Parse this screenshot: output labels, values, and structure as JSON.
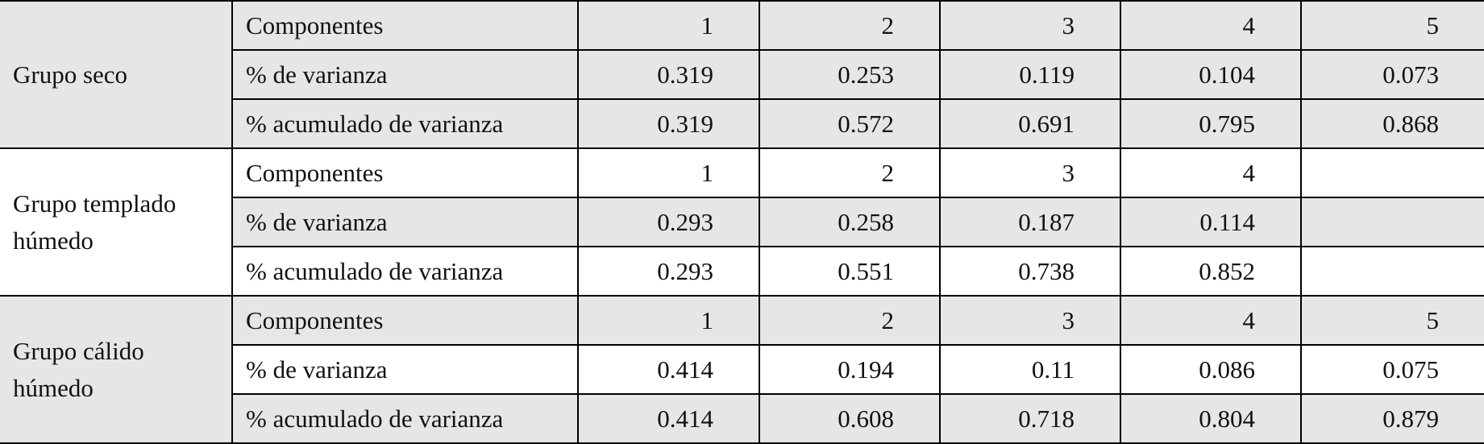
{
  "groups": [
    {
      "name": "Grupo seco",
      "rows": [
        {
          "label": "Componentes",
          "values": [
            1,
            2,
            3,
            4,
            5
          ]
        },
        {
          "label": "% de varianza",
          "values": [
            0.319,
            0.253,
            0.119,
            0.104,
            0.073
          ]
        },
        {
          "label": "% acumulado de varianza",
          "values": [
            0.319,
            0.572,
            0.691,
            0.795,
            0.868
          ]
        }
      ]
    },
    {
      "name": "Grupo templado húmedo",
      "rows": [
        {
          "label": "Componentes",
          "values": [
            1,
            2,
            3,
            4
          ]
        },
        {
          "label": "% de varianza",
          "values": [
            0.293,
            0.258,
            0.187,
            0.114
          ]
        },
        {
          "label": "% acumulado de varianza",
          "values": [
            0.293,
            0.551,
            0.738,
            0.852
          ]
        }
      ]
    },
    {
      "name": "Grupo cálido húmedo",
      "rows": [
        {
          "label": "Componentes",
          "values": [
            1,
            2,
            3,
            4,
            5
          ]
        },
        {
          "label": "% de varianza",
          "values": [
            0.414,
            0.194,
            0.11,
            0.086,
            0.075
          ]
        },
        {
          "label": "% acumulado de varianza",
          "values": [
            0.414,
            0.608,
            0.718,
            0.804,
            0.879
          ]
        }
      ]
    }
  ]
}
